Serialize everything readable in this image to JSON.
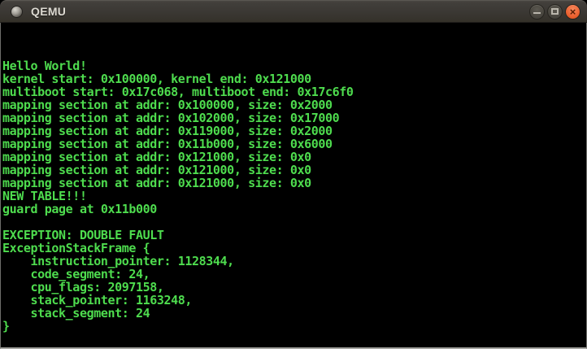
{
  "window": {
    "title": "QEMU",
    "icon": "qemu-window-icon",
    "controls": {
      "minimize_icon": "minimize-icon",
      "maximize_icon": "maximize-icon",
      "close_icon": "close-icon",
      "close_glyph": "×"
    }
  },
  "colors": {
    "titlebar_bg": "#3b3834",
    "title_text": "#dcd9d1",
    "close_button_orange": "#ec6434",
    "terminal_bg": "#000000",
    "terminal_green": "#4edc4e"
  },
  "console": {
    "lines": [
      "Hello World!",
      "kernel start: 0x100000, kernel end: 0x121000",
      "multiboot start: 0x17c068, multiboot end: 0x17c6f0",
      "mapping section at addr: 0x100000, size: 0x2000",
      "mapping section at addr: 0x102000, size: 0x17000",
      "mapping section at addr: 0x119000, size: 0x2000",
      "mapping section at addr: 0x11b000, size: 0x6000",
      "mapping section at addr: 0x121000, size: 0x0",
      "mapping section at addr: 0x121000, size: 0x0",
      "mapping section at addr: 0x121000, size: 0x0",
      "NEW TABLE!!!",
      "guard page at 0x11b000",
      "",
      "EXCEPTION: DOUBLE FAULT",
      "ExceptionStackFrame {",
      "    instruction_pointer: 1128344,",
      "    code_segment: 24,",
      "    cpu_flags: 2097158,",
      "    stack_pointer: 1163248,",
      "    stack_segment: 24",
      "}"
    ]
  }
}
